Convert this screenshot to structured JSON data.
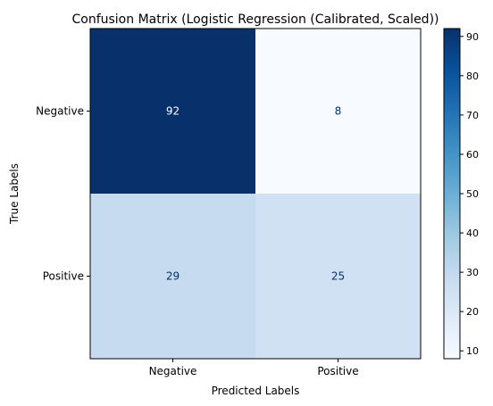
{
  "chart_data": {
    "type": "heatmap",
    "title": "Confusion Matrix (Logistic Regression (Calibrated, Scaled))",
    "xlabel": "Predicted Labels",
    "ylabel": "True Labels",
    "x_categories": [
      "Negative",
      "Positive"
    ],
    "y_categories": [
      "Negative",
      "Positive"
    ],
    "values": [
      [
        92,
        8
      ],
      [
        29,
        25
      ]
    ],
    "colormap": "Blues",
    "colorbar": {
      "min": 8,
      "max": 92,
      "ticks": [
        10,
        20,
        30,
        40,
        50,
        60,
        70,
        80,
        90
      ]
    },
    "colors": {
      "text_on_dark": "#ffffff",
      "text_on_light": "#08306b",
      "cell_92": "#08306b",
      "cell_8": "#f7fbff",
      "cell_29": "#c6dbef",
      "cell_25": "#d0e1f2"
    }
  }
}
